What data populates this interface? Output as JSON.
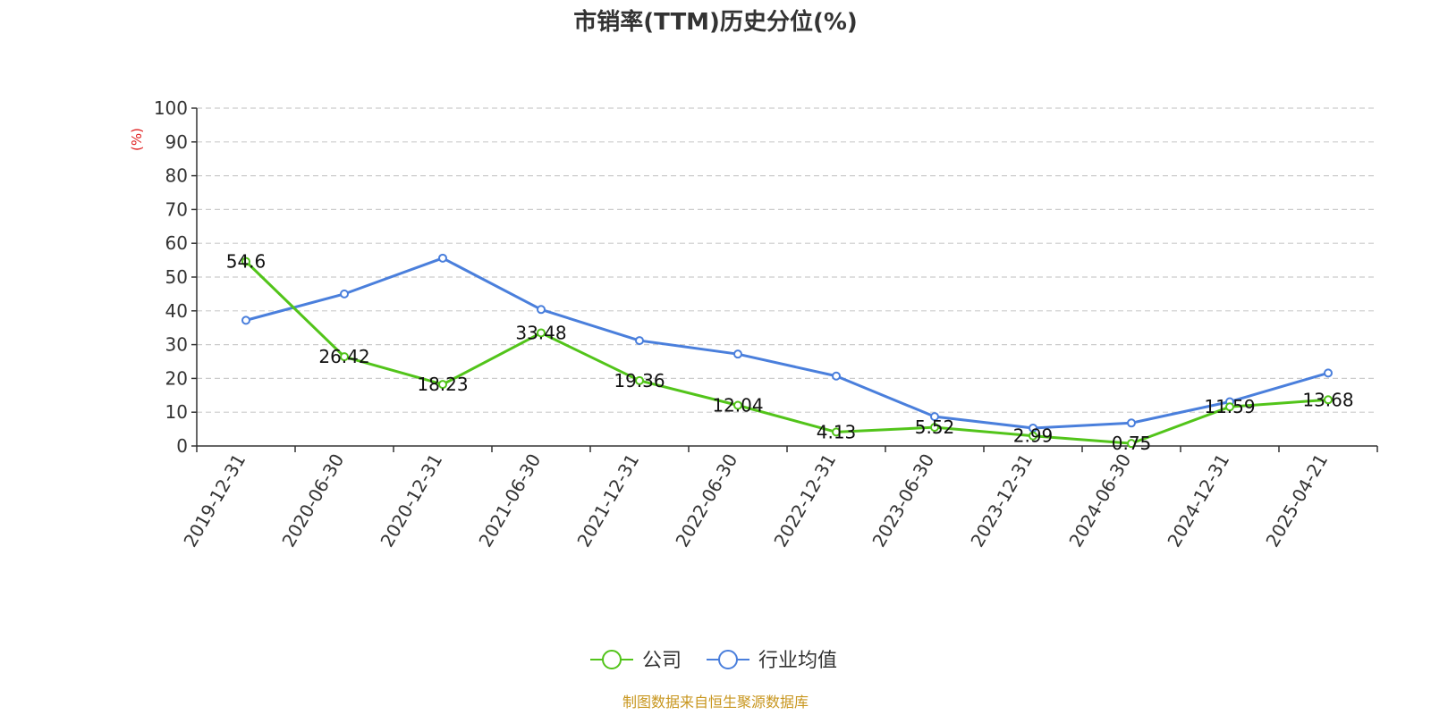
{
  "chart_data": {
    "type": "line",
    "title": "市销率(TTM)历史分位(%)",
    "ylabel": "(%)",
    "ylim": [
      0,
      100
    ],
    "yticks": [
      0,
      10,
      20,
      30,
      40,
      50,
      60,
      70,
      80,
      90,
      100
    ],
    "grid": true,
    "legend_position": "bottom",
    "categories": [
      "2019-12-31",
      "2020-06-30",
      "2020-12-31",
      "2021-06-30",
      "2021-12-31",
      "2022-06-30",
      "2022-12-31",
      "2023-06-30",
      "2023-12-31",
      "2024-06-30",
      "2024-12-31",
      "2025-04-21"
    ],
    "series": [
      {
        "name": "公司",
        "color": "#52c41a",
        "values": [
          54.6,
          26.42,
          18.23,
          33.48,
          19.36,
          12.04,
          4.13,
          5.52,
          2.99,
          0.75,
          11.59,
          13.68
        ],
        "labels": [
          "54.6",
          "26.42",
          "18.23",
          "33.48",
          "19.36",
          "12.04",
          "4.13",
          "5.52",
          "2.99",
          "0.75",
          "11.59",
          "13.68"
        ]
      },
      {
        "name": "行业均值",
        "color": "#4a7fdc",
        "values": [
          37.2,
          45.0,
          55.6,
          40.4,
          31.2,
          27.2,
          20.7,
          8.7,
          5.3,
          6.8,
          13.1,
          21.6
        ]
      }
    ],
    "source": "制图数据来自恒生聚源数据库",
    "source_color": "#c8961e",
    "unit_color": "#e02020"
  }
}
